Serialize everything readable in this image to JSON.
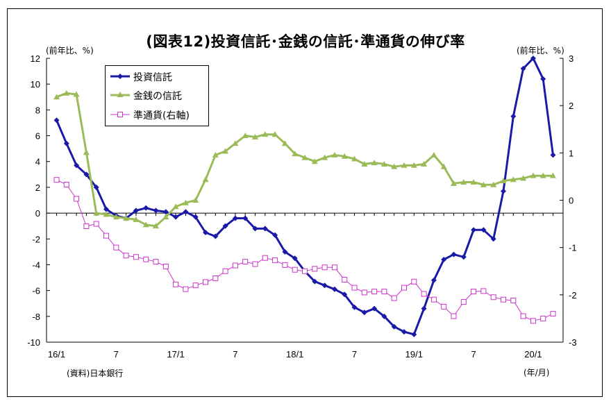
{
  "title": "(図表12)投資信託･金銭の信託･準通貨の伸び率",
  "left_unit": "(前年比、%)",
  "right_unit": "(前年比、%)",
  "source": "(資料)日本銀行",
  "x_unit": "(年/月)",
  "colors": {
    "toushin": "#1a1aa6",
    "kinsen": "#9bbb59",
    "juntsuka": "#cc33cc"
  },
  "chart_data": {
    "type": "line",
    "title": "(図表12)投資信託･金銭の信託･準通貨の伸び率",
    "x_tick_labels": [
      "16/1",
      "7",
      "17/1",
      "7",
      "18/1",
      "7",
      "19/1",
      "7",
      "20/1"
    ],
    "x_tick_months": [
      "2016-01",
      "2016-07",
      "2017-01",
      "2017-07",
      "2018-01",
      "2018-07",
      "2019-01",
      "2019-07",
      "2020-01"
    ],
    "x_range": [
      "2016-01",
      "2020-03"
    ],
    "x": [
      "2016-01",
      "2016-02",
      "2016-03",
      "2016-04",
      "2016-05",
      "2016-06",
      "2016-07",
      "2016-08",
      "2016-09",
      "2016-10",
      "2016-11",
      "2016-12",
      "2017-01",
      "2017-02",
      "2017-03",
      "2017-04",
      "2017-05",
      "2017-06",
      "2017-07",
      "2017-08",
      "2017-09",
      "2017-10",
      "2017-11",
      "2017-12",
      "2018-01",
      "2018-02",
      "2018-03",
      "2018-04",
      "2018-05",
      "2018-06",
      "2018-07",
      "2018-08",
      "2018-09",
      "2018-10",
      "2018-11",
      "2018-12",
      "2019-01",
      "2019-02",
      "2019-03",
      "2019-04",
      "2019-05",
      "2019-06",
      "2019-07",
      "2019-08",
      "2019-09",
      "2019-10",
      "2019-11",
      "2019-12",
      "2020-01",
      "2020-02",
      "2020-03"
    ],
    "y_left": {
      "range": [
        -10,
        12
      ],
      "ticks": [
        12,
        10,
        8,
        6,
        4,
        2,
        0,
        -2,
        -4,
        -6,
        -8,
        -10
      ]
    },
    "y_right": {
      "range": [
        -3,
        3
      ],
      "ticks": [
        3,
        2,
        1,
        0,
        -1,
        -2,
        -3
      ]
    },
    "legend_position": "top-left",
    "series": [
      {
        "name": "投資信託",
        "axis": "left",
        "marker": "diamond",
        "values": [
          7.2,
          5.4,
          3.7,
          3.0,
          2.0,
          0.3,
          -0.2,
          -0.4,
          0.2,
          0.4,
          0.2,
          0.1,
          -0.3,
          0.1,
          -0.3,
          -1.5,
          -1.8,
          -1.0,
          -0.4,
          -0.4,
          -1.2,
          -1.2,
          -1.7,
          -3.0,
          -3.5,
          -4.5,
          -5.3,
          -5.6,
          -5.9,
          -6.3,
          -7.3,
          -7.7,
          -7.4,
          -8.0,
          -8.8,
          -9.2,
          -9.4,
          -7.4,
          -5.2,
          -3.6,
          -3.2,
          -3.4,
          -1.3,
          -1.3,
          -2.0,
          1.7,
          7.5,
          11.2,
          12.0,
          10.4,
          4.5
        ]
      },
      {
        "name": "金銭の信託",
        "axis": "left",
        "marker": "triangle",
        "values": [
          9.0,
          9.3,
          9.2,
          4.7,
          0.0,
          -0.1,
          -0.3,
          -0.4,
          -0.5,
          -0.9,
          -1.0,
          -0.3,
          0.5,
          0.8,
          1.0,
          2.6,
          4.5,
          4.8,
          5.4,
          6.0,
          5.9,
          6.1,
          6.1,
          5.4,
          4.6,
          4.3,
          4.0,
          4.3,
          4.5,
          4.4,
          4.2,
          3.8,
          3.9,
          3.8,
          3.6,
          3.7,
          3.7,
          3.8,
          4.5,
          3.6,
          2.3,
          2.4,
          2.4,
          2.2,
          2.2,
          2.5,
          2.6,
          2.7,
          2.9,
          2.9,
          2.9
        ]
      },
      {
        "name": "準通貨(右軸)",
        "axis": "right",
        "marker": "square-open",
        "values": [
          0.43,
          0.33,
          0.03,
          -0.55,
          -0.5,
          -0.75,
          -1.0,
          -1.17,
          -1.2,
          -1.25,
          -1.3,
          -1.4,
          -1.78,
          -1.88,
          -1.8,
          -1.73,
          -1.65,
          -1.5,
          -1.38,
          -1.3,
          -1.35,
          -1.22,
          -1.27,
          -1.37,
          -1.47,
          -1.5,
          -1.45,
          -1.42,
          -1.42,
          -1.68,
          -1.85,
          -1.95,
          -1.93,
          -1.93,
          -2.07,
          -1.85,
          -1.72,
          -1.98,
          -2.1,
          -2.25,
          -2.45,
          -2.15,
          -1.93,
          -1.92,
          -2.05,
          -2.1,
          -2.12,
          -2.45,
          -2.55,
          -2.5,
          -2.4
        ]
      }
    ]
  }
}
